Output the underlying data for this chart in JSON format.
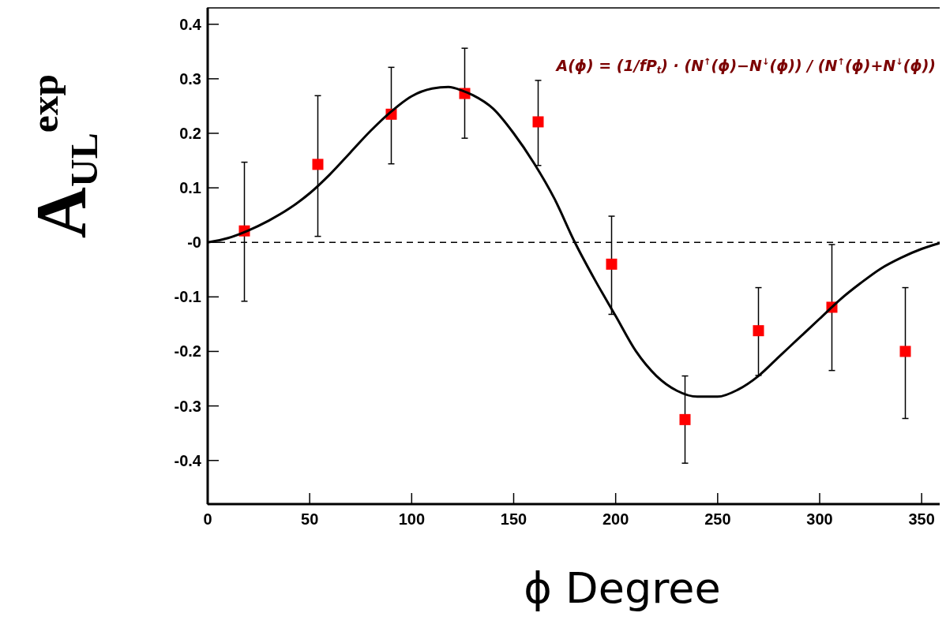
{
  "chart_data": {
    "type": "scatter",
    "xlabel": "ϕ   Degree",
    "ylabel": "A$_{UL}$$^{exp}$",
    "annotations": [
      "A(ϕ) = (1/fP$_{t}$) · (N$^{↑}$(ϕ)−N$^{↓}$(ϕ)) / (N$^{↑}$(ϕ)+N$^{↓}$(ϕ))"
    ],
    "xlim": [
      0,
      360
    ],
    "ylim": [
      -0.48,
      0.43
    ],
    "xticks": [
      0,
      50,
      100,
      150,
      200,
      250,
      300,
      350
    ],
    "yticks": [
      -0.4,
      -0.3,
      -0.2,
      -0.1,
      {
        "value": 0,
        "label": "-0"
      },
      0.1,
      0.2,
      0.3,
      0.4
    ],
    "ref_lines": [
      {
        "axis": "y",
        "value": 0,
        "color": "#000000",
        "line_style": "dashed"
      }
    ],
    "series": [
      {
        "color": "#ff0000",
        "marker": "square",
        "x": [
          18,
          54,
          90,
          126,
          162,
          198,
          234,
          270,
          306,
          342
        ],
        "values": [
          0.021,
          0.143,
          0.235,
          0.273,
          0.221,
          -0.04,
          -0.325,
          -0.162,
          -0.119,
          -0.2
        ],
        "errors": [
          [
            -0.108,
            0.147
          ],
          [
            0.011,
            0.269
          ],
          [
            0.144,
            0.321
          ],
          [
            0.191,
            0.356
          ],
          [
            0.141,
            0.297
          ],
          [
            -0.132,
            0.048
          ],
          [
            -0.405,
            -0.245
          ],
          [
            -0.244,
            -0.083
          ],
          [
            -0.235,
            -0.004
          ],
          [
            -0.323,
            -0.083
          ]
        ]
      },
      {
        "type": "line",
        "color": "#000000",
        "marker": "none",
        "line_style": "solid",
        "x": [
          0,
          10,
          20,
          30,
          40,
          50,
          60,
          70,
          80,
          90,
          100,
          110,
          118,
          125,
          130,
          140,
          150,
          160,
          170,
          180,
          190,
          200,
          210,
          220,
          230,
          240,
          250,
          260,
          270,
          280,
          290,
          300,
          310,
          320,
          330,
          340,
          350,
          360
        ],
        "values": [
          0,
          0.008,
          0.022,
          0.04,
          0.062,
          0.09,
          0.125,
          0.165,
          0.205,
          0.24,
          0.268,
          0.282,
          0.285,
          0.278,
          0.27,
          0.245,
          0.2,
          0.145,
          0.08,
          0,
          -0.07,
          -0.135,
          -0.2,
          -0.245,
          -0.272,
          -0.283,
          -0.283,
          -0.27,
          -0.245,
          -0.21,
          -0.175,
          -0.14,
          -0.105,
          -0.075,
          -0.048,
          -0.028,
          -0.012,
          0
        ]
      }
    ]
  }
}
